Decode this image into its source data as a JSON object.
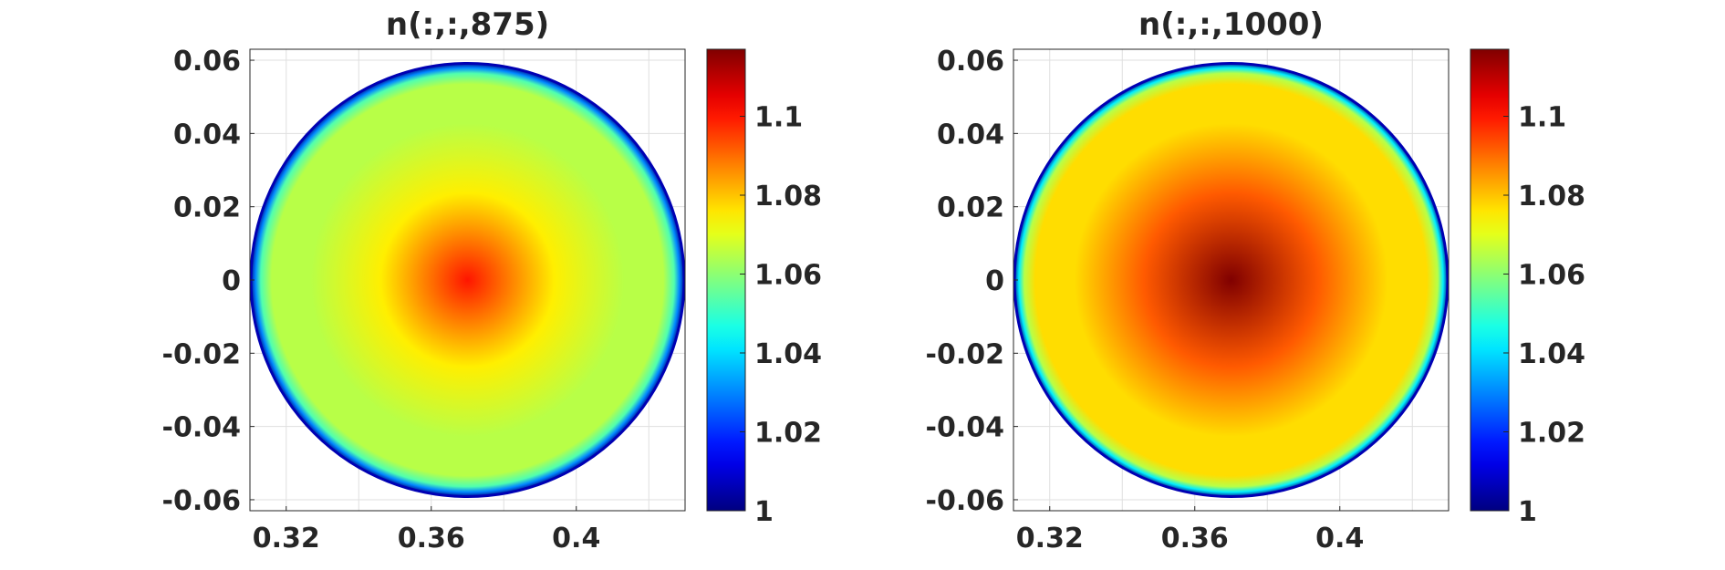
{
  "chart_data": [
    {
      "type": "heatmap",
      "title": "n(:,:,875)",
      "xlabel": "",
      "ylabel": "",
      "xlim": [
        0.31,
        0.43
      ],
      "ylim": [
        -0.063,
        0.063
      ],
      "x_ticks": [
        0.32,
        0.36,
        0.4
      ],
      "x_tick_labels": [
        "0.32",
        "0.36",
        "0.4"
      ],
      "y_ticks": [
        0.06,
        0.04,
        0.02,
        0,
        -0.02,
        -0.04,
        -0.06
      ],
      "y_tick_labels": [
        "0.06",
        "0.04",
        "0.02",
        "0",
        "-0.02",
        "-0.04",
        "-0.06"
      ],
      "grid": true,
      "domain": {
        "shape": "disk",
        "center": [
          0.37,
          0
        ],
        "radius": 0.06
      },
      "field": {
        "center_value": 1.1,
        "mid_value": 1.075,
        "plateau_value": 1.065,
        "boundary_value": 1.0
      },
      "colorbar": {
        "colormap": "jet",
        "range": [
          1.0,
          1.117
        ],
        "ticks": [
          1,
          1.02,
          1.04,
          1.06,
          1.08,
          1.1
        ],
        "tick_labels": [
          "1",
          "1.02",
          "1.04",
          "1.06",
          "1.08",
          "1.1"
        ]
      }
    },
    {
      "type": "heatmap",
      "title": "n(:,:,1000)",
      "xlabel": "",
      "ylabel": "",
      "xlim": [
        0.31,
        0.43
      ],
      "ylim": [
        -0.063,
        0.063
      ],
      "x_ticks": [
        0.32,
        0.36,
        0.4
      ],
      "x_tick_labels": [
        "0.32",
        "0.36",
        "0.4"
      ],
      "y_ticks": [
        0.06,
        0.04,
        0.02,
        0,
        -0.02,
        -0.04,
        -0.06
      ],
      "y_tick_labels": [
        "0.06",
        "0.04",
        "0.02",
        "0",
        "-0.02",
        "-0.04",
        "-0.06"
      ],
      "grid": true,
      "domain": {
        "shape": "disk",
        "center": [
          0.37,
          0
        ],
        "radius": 0.06
      },
      "field": {
        "center_value": 1.117,
        "mid_value": 1.092,
        "plateau_value": 1.077,
        "boundary_value": 1.0
      },
      "colorbar": {
        "colormap": "jet",
        "range": [
          1.0,
          1.117
        ],
        "ticks": [
          1,
          1.02,
          1.04,
          1.06,
          1.08,
          1.1
        ],
        "tick_labels": [
          "1",
          "1.02",
          "1.04",
          "1.06",
          "1.08",
          "1.1"
        ]
      }
    }
  ]
}
